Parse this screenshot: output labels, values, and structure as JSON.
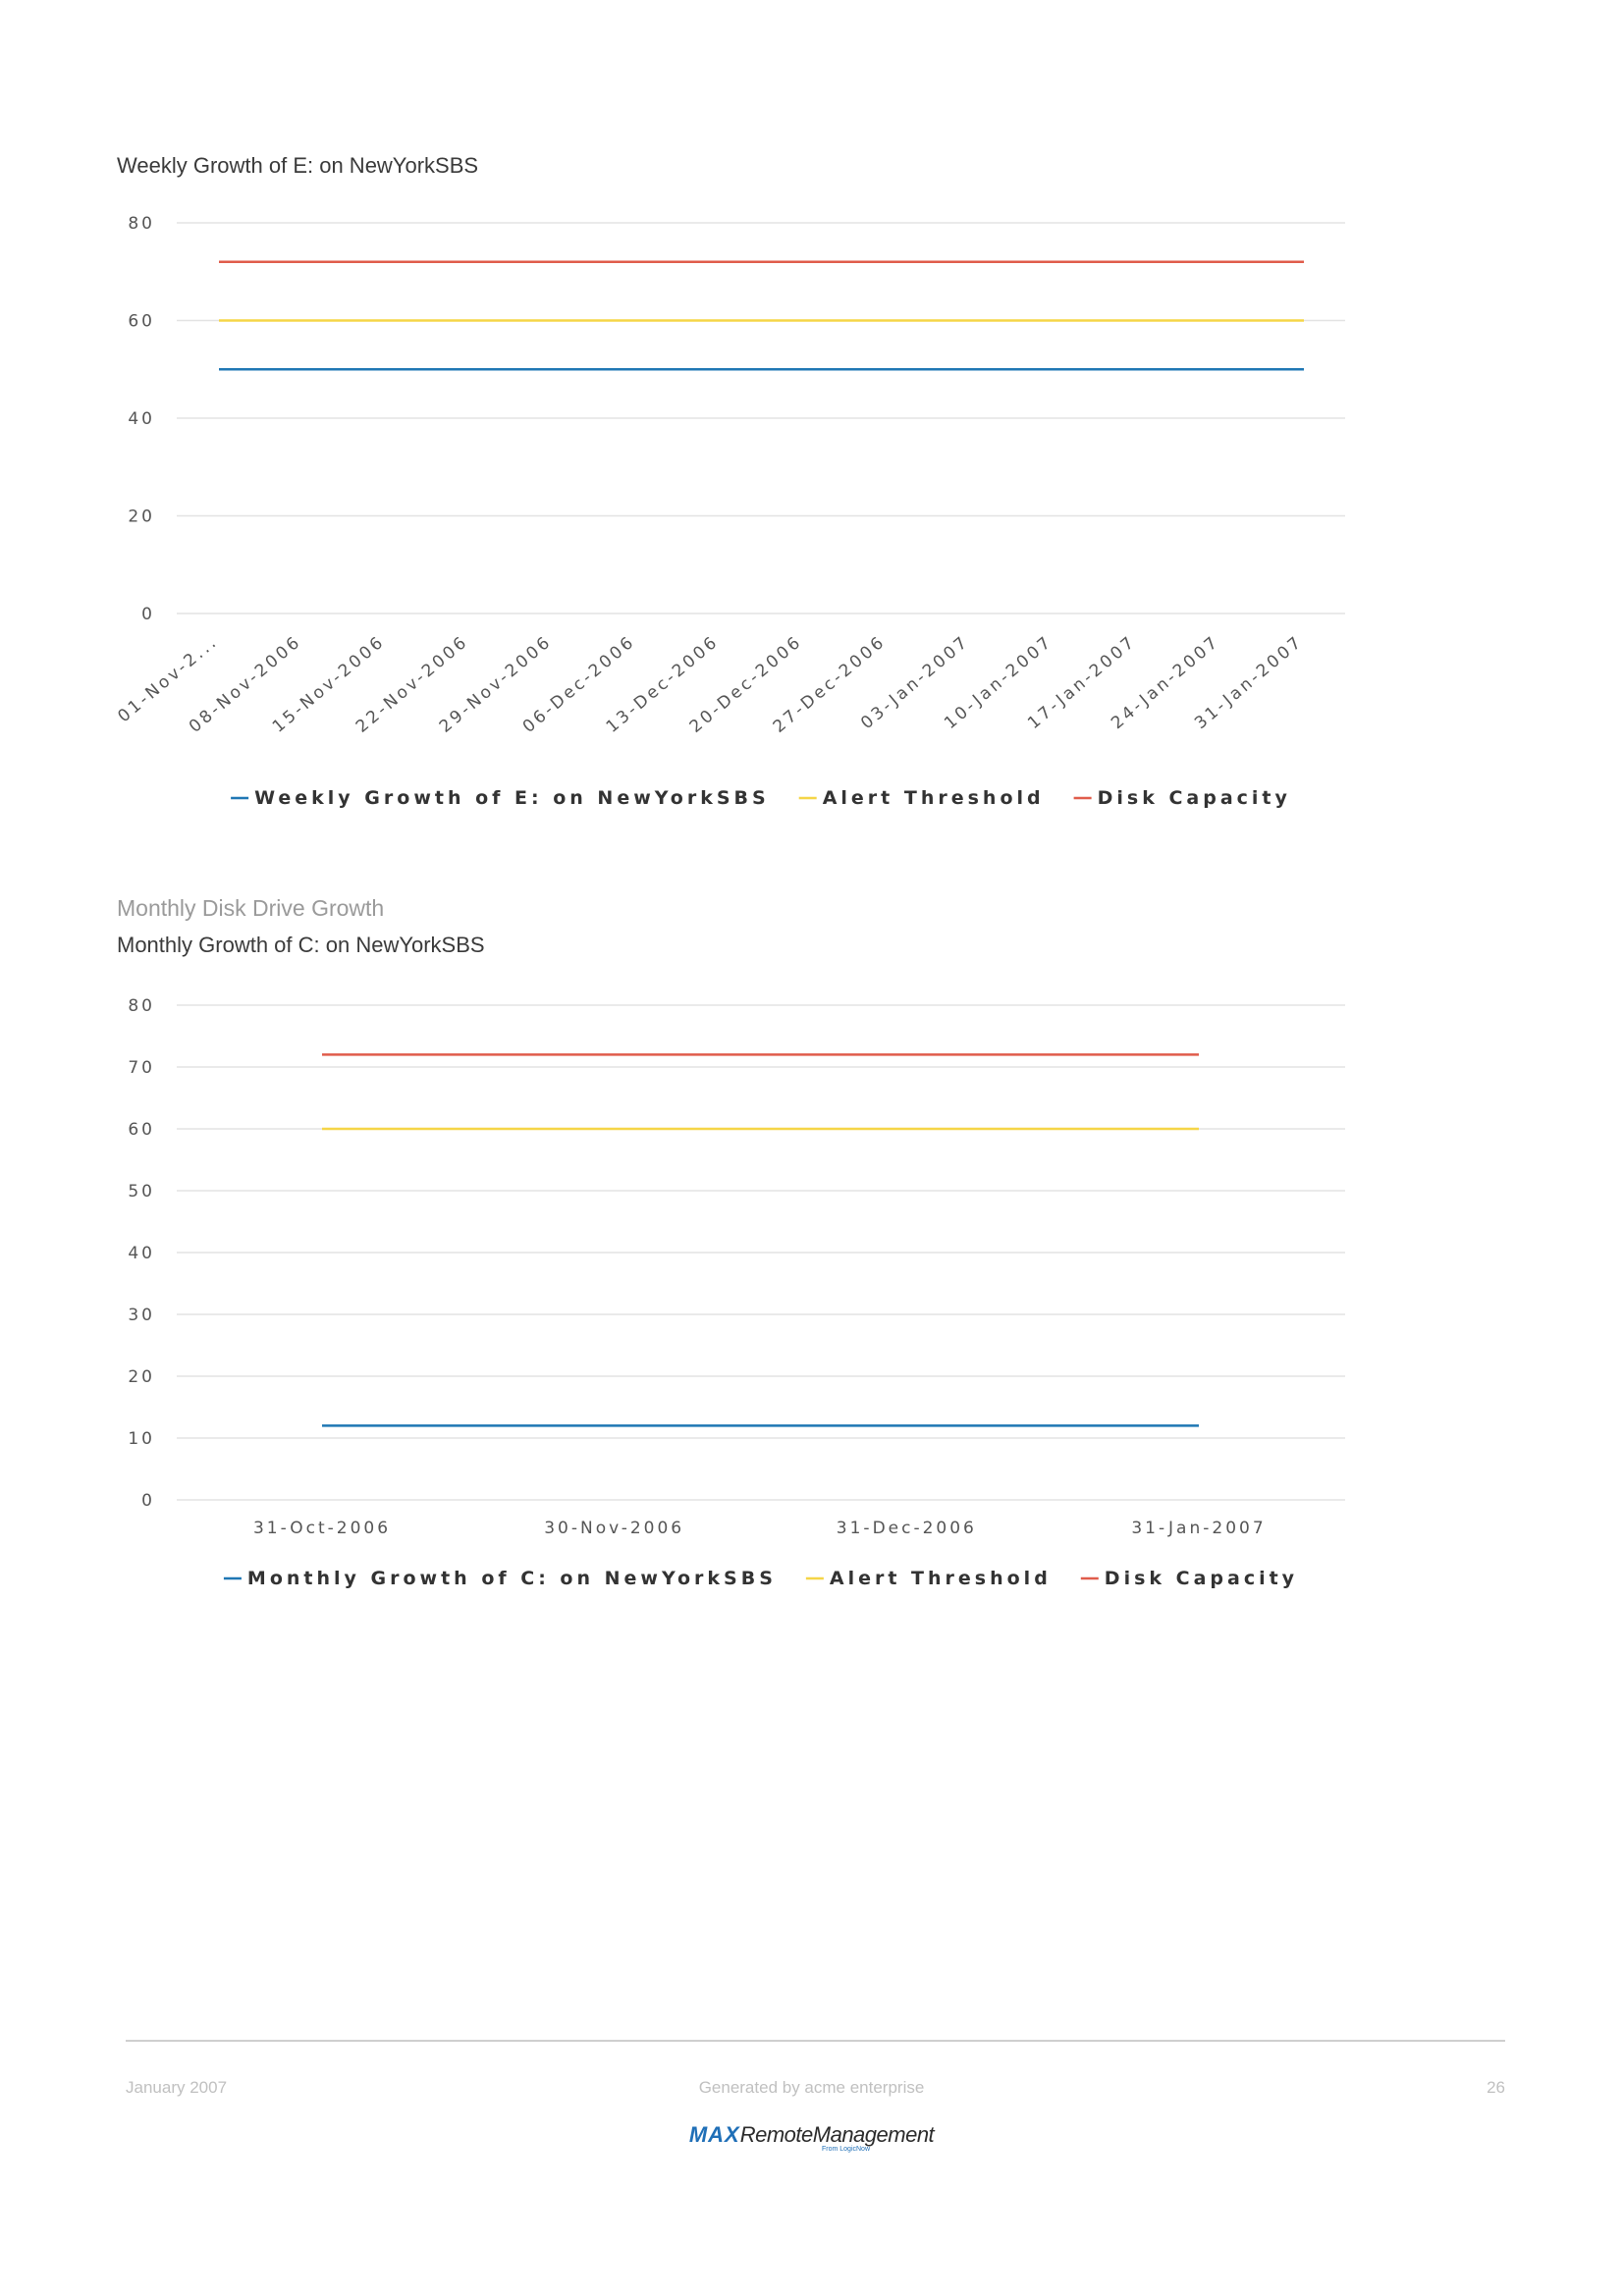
{
  "charts": [
    {
      "title": "Weekly Growth of E: on NewYorkSBS"
    },
    {
      "section_heading": "Monthly Disk Drive Growth",
      "title": "Monthly Growth of C: on NewYorkSBS"
    }
  ],
  "chart_data": [
    {
      "type": "line",
      "title": "Weekly Growth of E: on NewYorkSBS",
      "xlabel": "",
      "ylabel": "",
      "ylim": [
        0,
        80
      ],
      "yticks": [
        0,
        20,
        40,
        60,
        80
      ],
      "grid": true,
      "legend_position": "bottom",
      "categories": [
        "01-Nov-2...",
        "08-Nov-2006",
        "15-Nov-2006",
        "22-Nov-2006",
        "29-Nov-2006",
        "06-Dec-2006",
        "13-Dec-2006",
        "20-Dec-2006",
        "27-Dec-2006",
        "03-Jan-2007",
        "10-Jan-2007",
        "17-Jan-2007",
        "24-Jan-2007",
        "31-Jan-2007"
      ],
      "series": [
        {
          "name": "Weekly Growth of E: on NewYorkSBS",
          "color": "#1f77b4",
          "values": [
            50,
            50,
            50,
            50,
            50,
            50,
            50,
            50,
            50,
            50,
            50,
            50,
            50,
            50
          ]
        },
        {
          "name": "Alert Threshold",
          "color": "#f5d547",
          "values": [
            60,
            60,
            60,
            60,
            60,
            60,
            60,
            60,
            60,
            60,
            60,
            60,
            60,
            60
          ]
        },
        {
          "name": "Disk Capacity",
          "color": "#e05c4b",
          "values": [
            72,
            72,
            72,
            72,
            72,
            72,
            72,
            72,
            72,
            72,
            72,
            72,
            72,
            72
          ]
        }
      ]
    },
    {
      "type": "line",
      "title": "Monthly Growth of C: on NewYorkSBS",
      "xlabel": "",
      "ylabel": "",
      "ylim": [
        0,
        80
      ],
      "yticks": [
        0,
        10,
        20,
        30,
        40,
        50,
        60,
        70,
        80
      ],
      "grid": true,
      "legend_position": "bottom",
      "categories": [
        "31-Oct-2006",
        "30-Nov-2006",
        "31-Dec-2006",
        "31-Jan-2007"
      ],
      "series": [
        {
          "name": "Monthly Growth of C: on NewYorkSBS",
          "color": "#1f77b4",
          "values": [
            12,
            12,
            12,
            12
          ]
        },
        {
          "name": "Alert Threshold",
          "color": "#f5d547",
          "values": [
            60,
            60,
            60,
            60
          ]
        },
        {
          "name": "Disk Capacity",
          "color": "#e05c4b",
          "values": [
            72,
            72,
            72,
            72
          ]
        }
      ]
    }
  ],
  "footer": {
    "date": "January 2007",
    "generated_by": "Generated by acme enterprise",
    "page_number": "26",
    "logo_max": "MAX",
    "logo_rest": "RemoteManagement",
    "logo_sub": "From LogicNow"
  }
}
